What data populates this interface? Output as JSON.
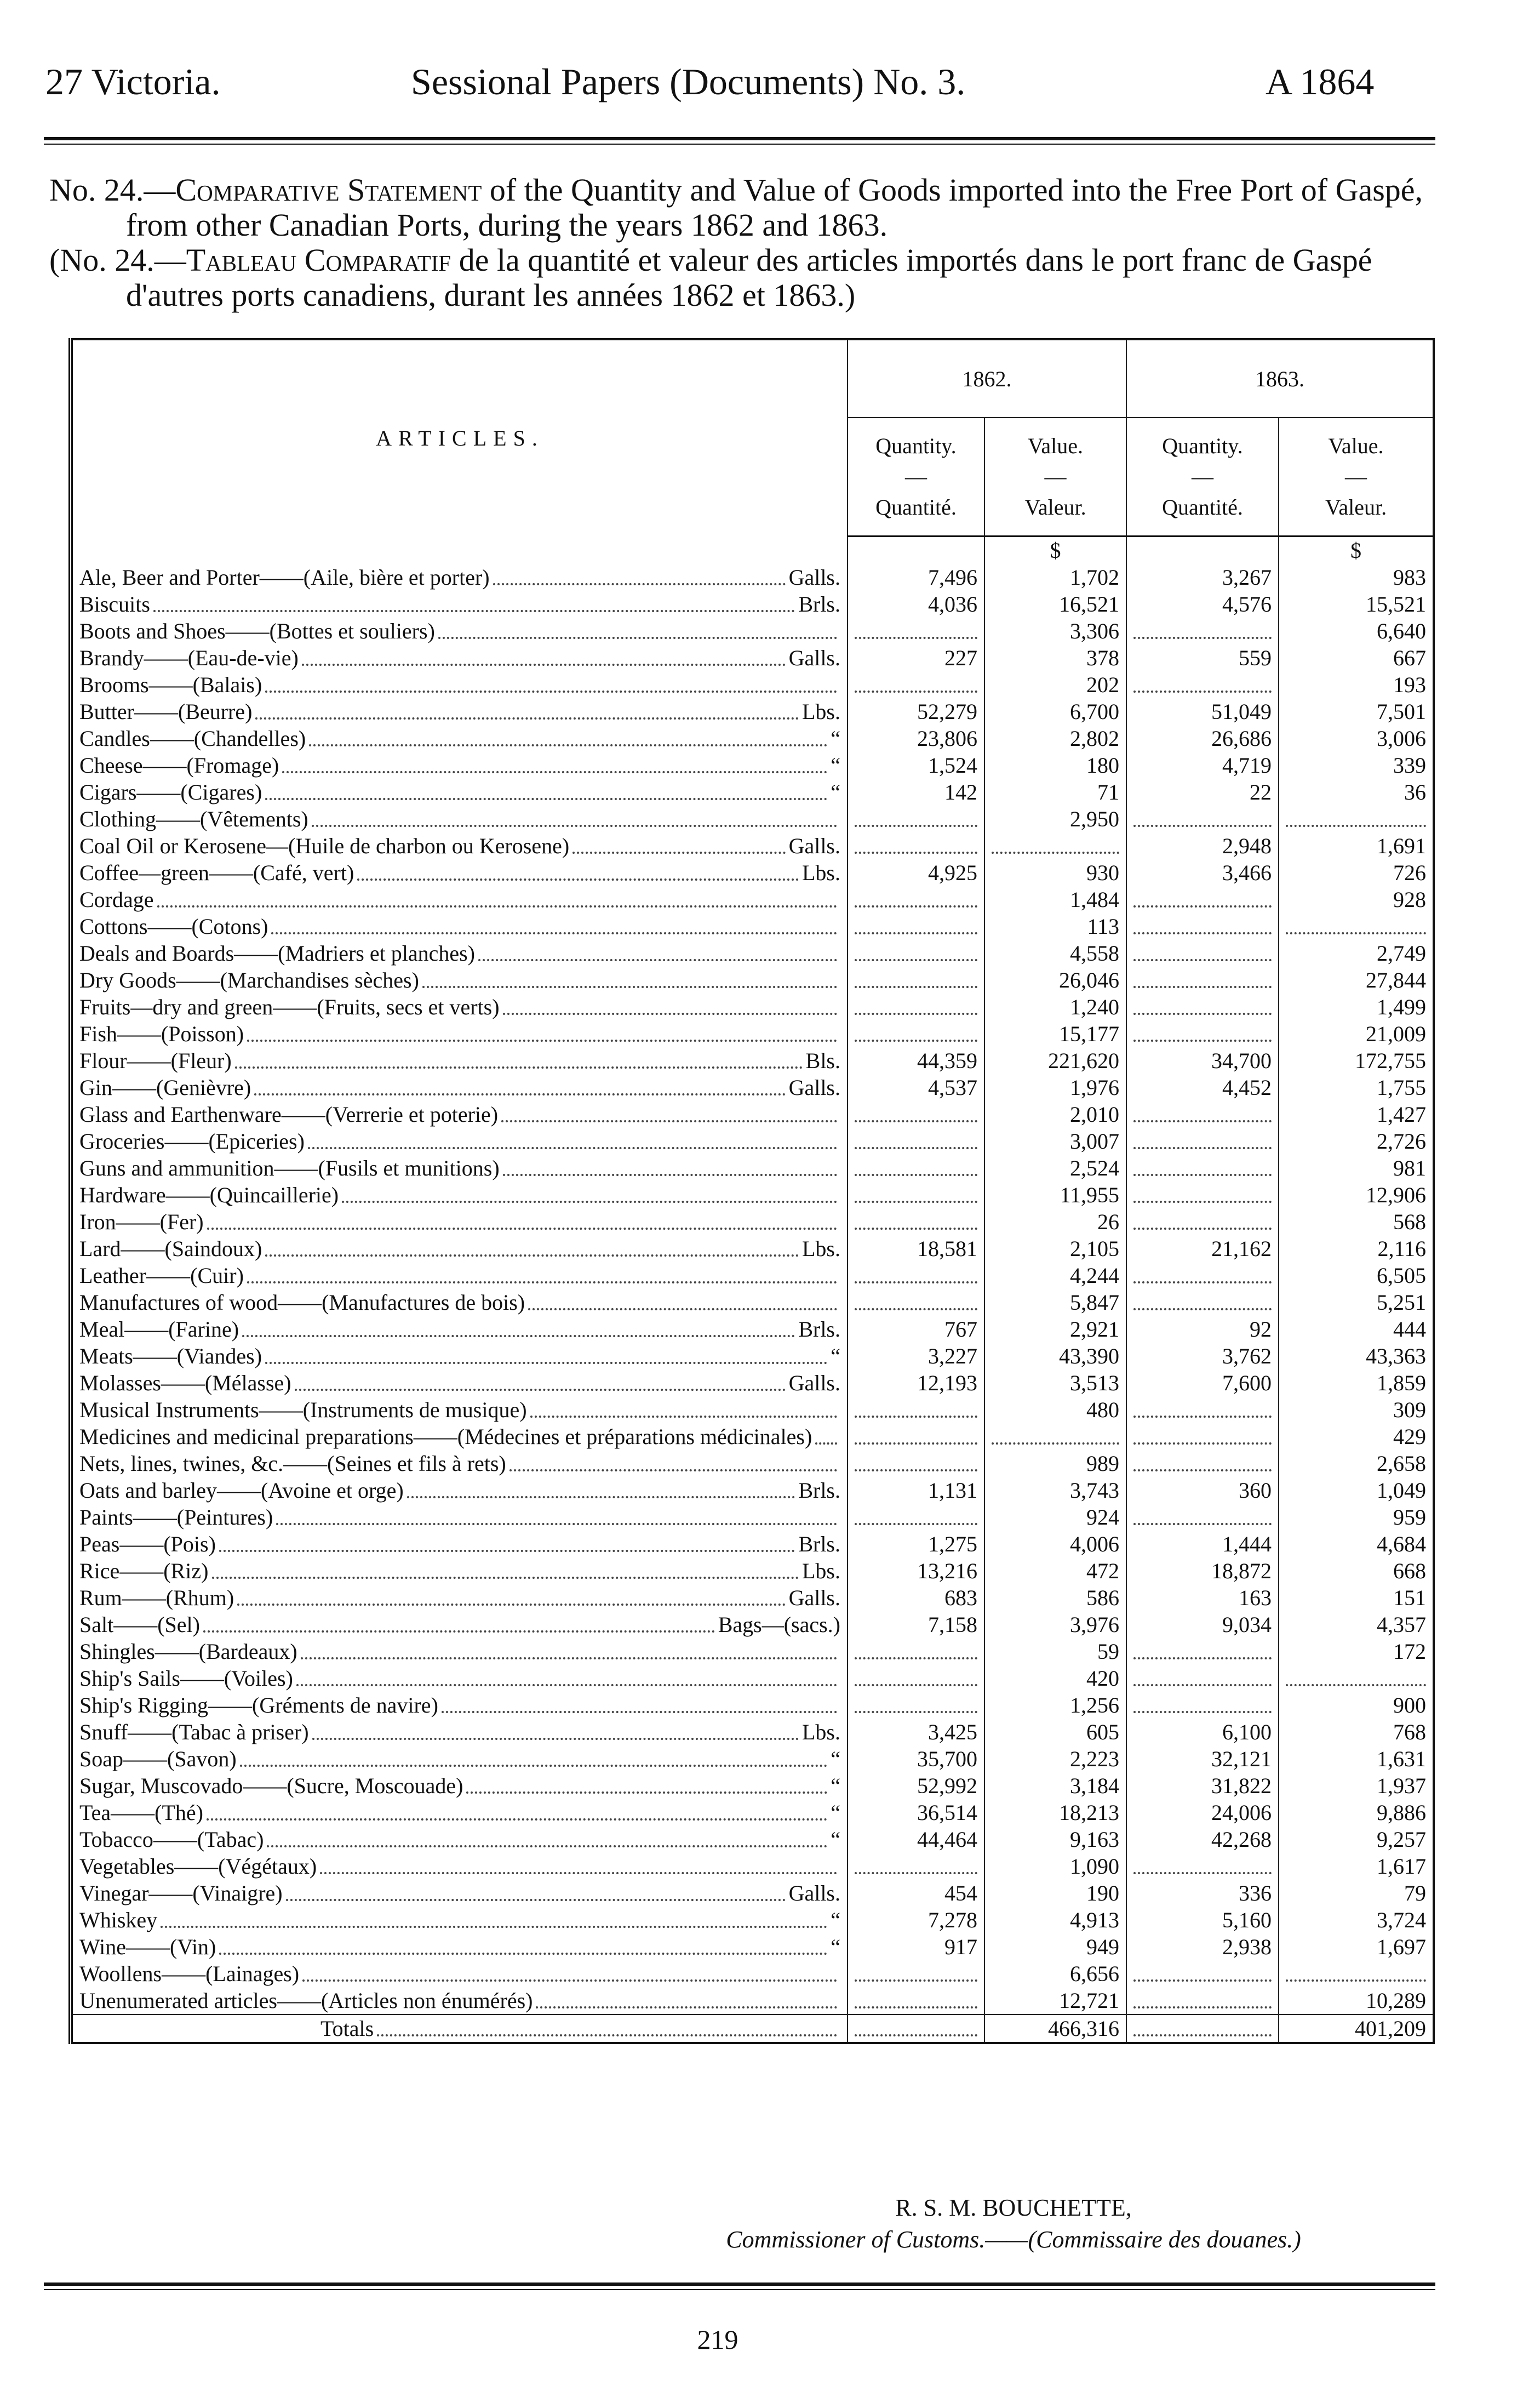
{
  "header": {
    "left": "27 Victoria.",
    "center": "Sessional Papers (Documents) No. 3.",
    "right": "A 1864"
  },
  "title": {
    "en": {
      "number": "No. 24.—",
      "lead": "Comparative Statement",
      "rest": "of the Quantity and Value of Goods imported into the Free Port of Gaspé, from other Canadian Ports, during the years 1862 and 1863."
    },
    "fr": {
      "number": "(No. 24.—",
      "lead": "Tableau Comparatif",
      "rest": "de la quantité et valeur des articles importés dans le port franc de Gaspé d'autres ports canadiens, durant les années 1862 et 1863.)"
    }
  },
  "table": {
    "articles_header": "ARTICLES.",
    "years": [
      "1862.",
      "1863."
    ],
    "columns": [
      {
        "en": "Quantity.",
        "fr": "Quantité."
      },
      {
        "en": "Value.",
        "fr": "Valeur."
      },
      {
        "en": "Quantity.",
        "fr": "Quantité."
      },
      {
        "en": "Value.",
        "fr": "Valeur."
      }
    ],
    "dash": "—",
    "currency": [
      "$",
      "$"
    ],
    "rows": [
      {
        "article": "Ale, Beer and Porter——(Aile, bière et porter)",
        "unit": "Galls.",
        "values": [
          "7,496",
          "1,702",
          "3,267",
          "983"
        ]
      },
      {
        "article": "Biscuits",
        "unit": "Brls.",
        "values": [
          "4,036",
          "16,521",
          "4,576",
          "15,521"
        ]
      },
      {
        "article": "Boots and Shoes——(Bottes et souliers)",
        "unit": null,
        "values": [
          null,
          "3,306",
          null,
          "6,640"
        ]
      },
      {
        "article": "Brandy——(Eau-de-vie)",
        "unit": "Galls.",
        "values": [
          "227",
          "378",
          "559",
          "667"
        ]
      },
      {
        "article": "Brooms——(Balais)",
        "unit": null,
        "values": [
          null,
          "202",
          null,
          "193"
        ]
      },
      {
        "article": "Butter——(Beurre)",
        "unit": "Lbs.",
        "values": [
          "52,279",
          "6,700",
          "51,049",
          "7,501"
        ]
      },
      {
        "article": "Candles——(Chandelles)",
        "unit": "“",
        "values": [
          "23,806",
          "2,802",
          "26,686",
          "3,006"
        ]
      },
      {
        "article": "Cheese——(Fromage)",
        "unit": "“",
        "values": [
          "1,524",
          "180",
          "4,719",
          "339"
        ]
      },
      {
        "article": "Cigars——(Cigares)",
        "unit": "“",
        "values": [
          "142",
          "71",
          "22",
          "36"
        ]
      },
      {
        "article": "Clothing——(Vêtements)",
        "unit": null,
        "values": [
          null,
          "2,950",
          null,
          null
        ]
      },
      {
        "article": "Coal Oil or Kerosene—(Huile de charbon ou Kerosene)",
        "unit": "Galls.",
        "values": [
          null,
          null,
          "2,948",
          "1,691"
        ]
      },
      {
        "article": "Coffee—green——(Café, vert)",
        "unit": "Lbs.",
        "values": [
          "4,925",
          "930",
          "3,466",
          "726"
        ]
      },
      {
        "article": "Cordage",
        "unit": null,
        "values": [
          null,
          "1,484",
          null,
          "928"
        ]
      },
      {
        "article": "Cottons——(Cotons)",
        "unit": null,
        "values": [
          null,
          "113",
          null,
          null
        ]
      },
      {
        "article": "Deals and Boards——(Madriers et planches)",
        "unit": null,
        "values": [
          null,
          "4,558",
          null,
          "2,749"
        ]
      },
      {
        "article": "Dry Goods——(Marchandises sèches)",
        "unit": null,
        "values": [
          null,
          "26,046",
          null,
          "27,844"
        ]
      },
      {
        "article": "Fruits—dry and green——(Fruits, secs et verts)",
        "unit": null,
        "values": [
          null,
          "1,240",
          null,
          "1,499"
        ]
      },
      {
        "article": "Fish——(Poisson)",
        "unit": null,
        "values": [
          null,
          "15,177",
          null,
          "21,009"
        ]
      },
      {
        "article": "Flour——(Fleur)",
        "unit": "Bls.",
        "values": [
          "44,359",
          "221,620",
          "34,700",
          "172,755"
        ]
      },
      {
        "article": "Gin——(Genièvre)",
        "unit": "Galls.",
        "values": [
          "4,537",
          "1,976",
          "4,452",
          "1,755"
        ]
      },
      {
        "article": "Glass and Earthenware——(Verrerie et poterie)",
        "unit": null,
        "values": [
          null,
          "2,010",
          null,
          "1,427"
        ]
      },
      {
        "article": "Groceries——(Epiceries)",
        "unit": null,
        "values": [
          null,
          "3,007",
          null,
          "2,726"
        ]
      },
      {
        "article": "Guns and ammunition——(Fusils et munitions)",
        "unit": null,
        "values": [
          null,
          "2,524",
          null,
          "981"
        ]
      },
      {
        "article": "Hardware——(Quincaillerie)",
        "unit": null,
        "values": [
          null,
          "11,955",
          null,
          "12,906"
        ]
      },
      {
        "article": "Iron——(Fer)",
        "unit": null,
        "values": [
          null,
          "26",
          null,
          "568"
        ]
      },
      {
        "article": "Lard——(Saindoux)",
        "unit": "Lbs.",
        "values": [
          "18,581",
          "2,105",
          "21,162",
          "2,116"
        ]
      },
      {
        "article": "Leather——(Cuir)",
        "unit": null,
        "values": [
          null,
          "4,244",
          null,
          "6,505"
        ]
      },
      {
        "article": "Manufactures of wood——(Manufactures de bois)",
        "unit": null,
        "values": [
          null,
          "5,847",
          null,
          "5,251"
        ]
      },
      {
        "article": "Meal——(Farine)",
        "unit": "Brls.",
        "values": [
          "767",
          "2,921",
          "92",
          "444"
        ]
      },
      {
        "article": "Meats——(Viandes)",
        "unit": "“",
        "values": [
          "3,227",
          "43,390",
          "3,762",
          "43,363"
        ]
      },
      {
        "article": "Molasses——(Mélasse)",
        "unit": "Galls.",
        "values": [
          "12,193",
          "3,513",
          "7,600",
          "1,859"
        ]
      },
      {
        "article": "Musical Instruments——(Instruments de musique)",
        "unit": null,
        "values": [
          null,
          "480",
          null,
          "309"
        ]
      },
      {
        "article": "Medicines and medicinal preparations——(Médecines et préparations médicinales)",
        "unit": null,
        "values": [
          null,
          null,
          null,
          "429"
        ]
      },
      {
        "article": "Nets, lines, twines, &c.——(Seines et fils à rets)",
        "unit": null,
        "values": [
          null,
          "989",
          null,
          "2,658"
        ]
      },
      {
        "article": "Oats and barley——(Avoine et orge)",
        "unit": "Brls.",
        "values": [
          "1,131",
          "3,743",
          "360",
          "1,049"
        ]
      },
      {
        "article": "Paints——(Peintures)",
        "unit": null,
        "values": [
          null,
          "924",
          null,
          "959"
        ]
      },
      {
        "article": "Peas——(Pois)",
        "unit": "Brls.",
        "values": [
          "1,275",
          "4,006",
          "1,444",
          "4,684"
        ]
      },
      {
        "article": "Rice——(Riz)",
        "unit": "Lbs.",
        "values": [
          "13,216",
          "472",
          "18,872",
          "668"
        ]
      },
      {
        "article": "Rum——(Rhum)",
        "unit": "Galls.",
        "values": [
          "683",
          "586",
          "163",
          "151"
        ]
      },
      {
        "article": "Salt——(Sel)",
        "unit": "Bags—(sacs.)",
        "values": [
          "7,158",
          "3,976",
          "9,034",
          "4,357"
        ]
      },
      {
        "article": "Shingles——(Bardeaux)",
        "unit": null,
        "values": [
          null,
          "59",
          null,
          "172"
        ]
      },
      {
        "article": "Ship's Sails——(Voiles)",
        "unit": null,
        "values": [
          null,
          "420",
          null,
          null
        ]
      },
      {
        "article": "Ship's Rigging——(Gréments de navire)",
        "unit": null,
        "values": [
          null,
          "1,256",
          null,
          "900"
        ]
      },
      {
        "article": "Snuff——(Tabac à priser)",
        "unit": "Lbs.",
        "values": [
          "3,425",
          "605",
          "6,100",
          "768"
        ]
      },
      {
        "article": "Soap——(Savon)",
        "unit": "“",
        "values": [
          "35,700",
          "2,223",
          "32,121",
          "1,631"
        ]
      },
      {
        "article": "Sugar, Muscovado——(Sucre, Moscouade)",
        "unit": "“",
        "values": [
          "52,992",
          "3,184",
          "31,822",
          "1,937"
        ]
      },
      {
        "article": "Tea——(Thé)",
        "unit": "“",
        "values": [
          "36,514",
          "18,213",
          "24,006",
          "9,886"
        ]
      },
      {
        "article": "Tobacco——(Tabac)",
        "unit": "“",
        "values": [
          "44,464",
          "9,163",
          "42,268",
          "9,257"
        ]
      },
      {
        "article": "Vegetables——(Végétaux)",
        "unit": null,
        "values": [
          null,
          "1,090",
          null,
          "1,617"
        ]
      },
      {
        "article": "Vinegar——(Vinaigre)",
        "unit": "Galls.",
        "values": [
          "454",
          "190",
          "336",
          "79"
        ]
      },
      {
        "article": "Whiskey",
        "unit": "“",
        "values": [
          "7,278",
          "4,913",
          "5,160",
          "3,724"
        ]
      },
      {
        "article": "Wine——(Vin)",
        "unit": "“",
        "values": [
          "917",
          "949",
          "2,938",
          "1,697"
        ]
      },
      {
        "article": "Woollens——(Lainages)",
        "unit": null,
        "values": [
          null,
          "6,656",
          null,
          null
        ]
      },
      {
        "article": "Unenumerated articles——(Articles non énumérés)",
        "unit": null,
        "values": [
          null,
          "12,721",
          null,
          "10,289"
        ]
      }
    ],
    "totals": {
      "label": "Totals",
      "values": [
        null,
        "466,316",
        null,
        "401,209"
      ]
    }
  },
  "signature": {
    "name": "R. S. M. BOUCHETTE,",
    "title": "Commissioner of Customs.——(Commissaire des douanes.)"
  },
  "page_number": "219"
}
